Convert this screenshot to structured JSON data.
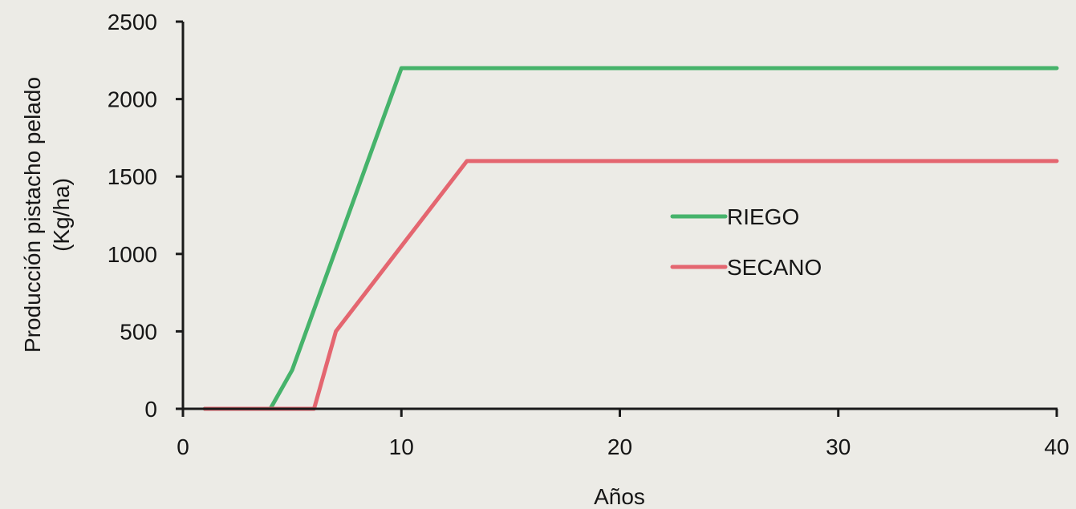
{
  "chart_data": {
    "type": "line",
    "title": "",
    "xlabel": "Años",
    "ylabel": [
      "Producción pistacho pelado",
      "(Kg/ha)"
    ],
    "xlim": [
      0,
      40
    ],
    "ylim": [
      0,
      2500
    ],
    "xticks": [
      0,
      10,
      20,
      30,
      40
    ],
    "yticks": [
      0,
      500,
      1000,
      1500,
      2000,
      2500
    ],
    "grid": false,
    "legend_position": "center-right",
    "series": [
      {
        "name": "RIEGO",
        "color": "#46b36b",
        "x": [
          1,
          4,
          5,
          10,
          40
        ],
        "y": [
          0,
          0,
          250,
          2200,
          2200
        ]
      },
      {
        "name": "SECANO",
        "color": "#e46670",
        "x": [
          1,
          6,
          7,
          13,
          40
        ],
        "y": [
          0,
          0,
          500,
          1600,
          1600
        ]
      }
    ]
  }
}
